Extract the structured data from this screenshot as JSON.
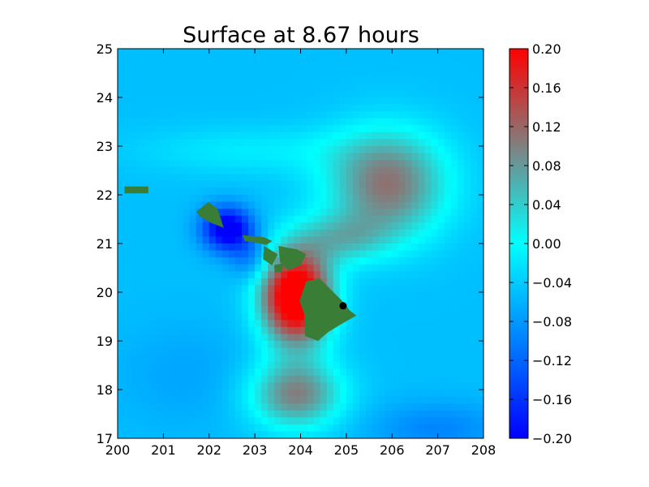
{
  "chart_data": {
    "type": "heatmap",
    "title": "Surface at 8.67 hours",
    "xlabel": "",
    "ylabel": "",
    "xlim": [
      200,
      208
    ],
    "ylim": [
      17,
      25
    ],
    "x_ticks": [
      "200",
      "201",
      "202",
      "203",
      "204",
      "205",
      "206",
      "207",
      "208"
    ],
    "y_ticks": [
      "17",
      "18",
      "19",
      "20",
      "21",
      "22",
      "23",
      "24",
      "25"
    ],
    "colorbar": {
      "range": [
        -0.2,
        0.2
      ],
      "ticks": [
        "0.20",
        "0.16",
        "0.12",
        "0.08",
        "0.04",
        "0.00",
        "−0.04",
        "−0.08",
        "−0.12",
        "−0.16",
        "−0.20"
      ],
      "colors": [
        "#0000ff",
        "#00ffff",
        "#808080",
        "#ff0000"
      ]
    },
    "field_features": [
      {
        "kind": "positive-max",
        "x": 203.9,
        "y": 19.8,
        "value": 0.2
      },
      {
        "kind": "negative-min",
        "x": 202.3,
        "y": 21.3,
        "value": -0.2
      },
      {
        "kind": "positive-lobe",
        "x": 205.8,
        "y": 22.1,
        "value": 0.11
      },
      {
        "kind": "positive-lobe",
        "x": 203.9,
        "y": 17.9,
        "value": 0.11
      }
    ],
    "marker": {
      "x": 204.93,
      "y": 19.72,
      "color": "#000000"
    },
    "land_color": "#3a7d36"
  }
}
